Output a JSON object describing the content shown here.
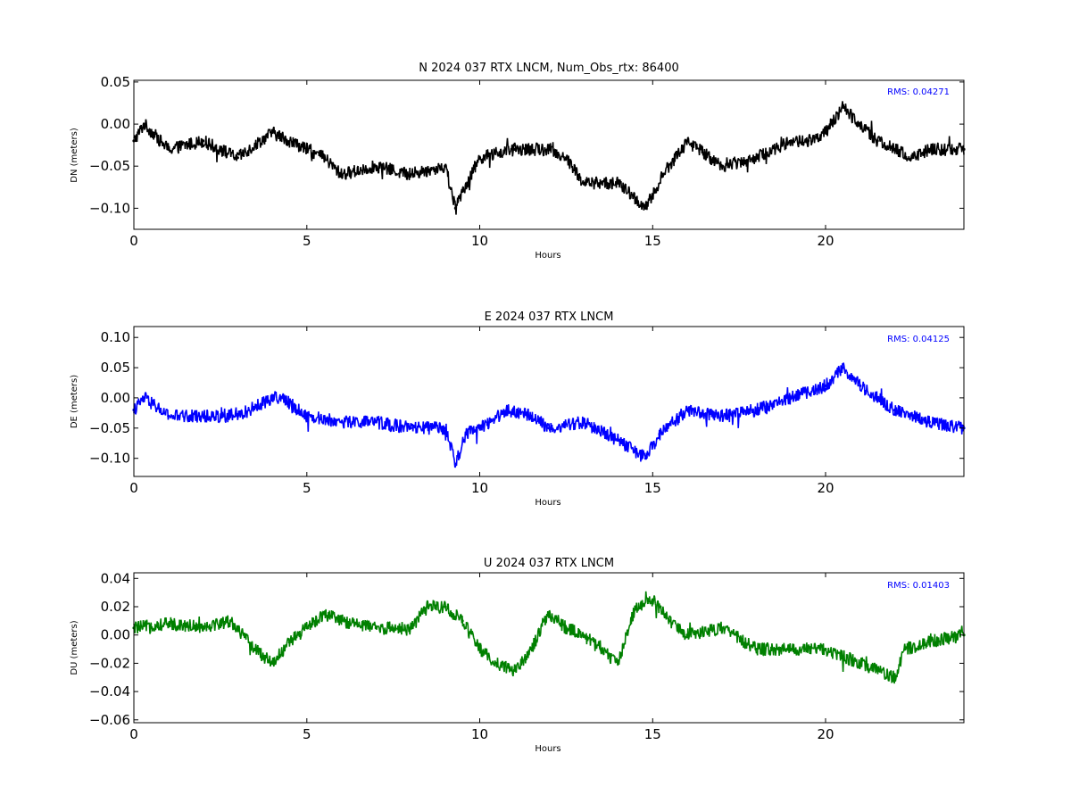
{
  "chart_data": [
    {
      "type": "scatter",
      "title": "N 2024 037 RTX  LNCM, Num_Obs_rtx: 86400",
      "xlabel": "Hours",
      "ylabel": "DN (meters)",
      "xlim": [
        0,
        24
      ],
      "ylim": [
        -0.125,
        0.052
      ],
      "xticks": [
        0,
        5,
        10,
        15,
        20
      ],
      "xtick_labels": [
        "0",
        "5",
        "10",
        "15",
        "20"
      ],
      "yticks": [
        -0.1,
        -0.05,
        0.0,
        0.05
      ],
      "ytick_labels": [
        "−0.10",
        "−0.05",
        "0.00",
        "0.05"
      ],
      "annotation": "RMS:  0.04271",
      "annotation_color": "#0000ff",
      "series": [
        {
          "color": "#000000",
          "x": [
            0,
            0.3,
            1,
            2,
            3,
            4,
            5,
            5.5,
            6,
            7,
            8,
            9,
            9.3,
            9.5,
            10,
            11,
            12,
            12.5,
            13,
            14,
            14.8,
            15.3,
            16,
            17,
            18,
            19,
            19.5,
            20,
            20.5,
            21,
            21.5,
            22,
            22.5,
            23,
            24
          ],
          "y": [
            -0.02,
            0.0,
            -0.03,
            -0.02,
            -0.04,
            -0.01,
            -0.03,
            -0.04,
            -0.06,
            -0.05,
            -0.06,
            -0.05,
            -0.1,
            -0.08,
            -0.04,
            -0.03,
            -0.03,
            -0.04,
            -0.07,
            -0.07,
            -0.1,
            -0.06,
            -0.02,
            -0.05,
            -0.04,
            -0.02,
            -0.02,
            -0.01,
            0.02,
            0.0,
            -0.02,
            -0.03,
            -0.04,
            -0.03,
            -0.03
          ]
        }
      ]
    },
    {
      "type": "scatter",
      "title": "E 2024 037 RTX  LNCM",
      "xlabel": "Hours",
      "ylabel": "DE (meters)",
      "xlim": [
        0,
        24
      ],
      "ylim": [
        -0.13,
        0.118
      ],
      "xticks": [
        0,
        5,
        10,
        15,
        20
      ],
      "xtick_labels": [
        "0",
        "5",
        "10",
        "15",
        "20"
      ],
      "yticks": [
        -0.1,
        -0.05,
        0.0,
        0.05,
        0.1
      ],
      "ytick_labels": [
        "−0.10",
        "−0.05",
        "0.00",
        "0.05",
        "0.10"
      ],
      "annotation": "RMS:  0.04125",
      "annotation_color": "#0000ff",
      "series": [
        {
          "color": "#0000ff",
          "x": [
            0,
            0.3,
            1,
            2,
            3,
            4,
            4.3,
            5,
            6,
            7,
            8,
            9,
            9.3,
            9.6,
            10,
            10.8,
            11.5,
            12,
            13,
            14,
            14.8,
            15.2,
            16,
            17,
            18,
            19,
            20,
            20.5,
            21,
            22,
            23,
            24
          ],
          "y": [
            -0.02,
            0.0,
            -0.03,
            -0.03,
            -0.03,
            0.0,
            0.0,
            -0.03,
            -0.04,
            -0.04,
            -0.05,
            -0.05,
            -0.11,
            -0.06,
            -0.05,
            -0.02,
            -0.03,
            -0.05,
            -0.04,
            -0.07,
            -0.1,
            -0.06,
            -0.02,
            -0.03,
            -0.02,
            0.0,
            0.02,
            0.05,
            0.02,
            -0.02,
            -0.04,
            -0.05
          ]
        }
      ]
    },
    {
      "type": "scatter",
      "title": "U 2024 037 RTX  LNCM",
      "xlabel": "Hours",
      "ylabel": "DU (meters)",
      "xlim": [
        0,
        24
      ],
      "ylim": [
        -0.062,
        0.044
      ],
      "xticks": [
        0,
        5,
        10,
        15,
        20
      ],
      "xtick_labels": [
        "0",
        "5",
        "10",
        "15",
        "20"
      ],
      "yticks": [
        -0.06,
        -0.04,
        -0.02,
        0.0,
        0.02,
        0.04
      ],
      "ytick_labels": [
        "−0.06",
        "−0.04",
        "−0.02",
        "0.00",
        "0.02",
        "0.04"
      ],
      "annotation": "RMS:  0.01403",
      "annotation_color": "#0000ff",
      "series": [
        {
          "color": "#008000",
          "x": [
            0,
            1,
            2,
            2.8,
            3.5,
            4,
            4.5,
            5,
            5.5,
            6,
            7,
            8,
            8.5,
            9,
            9.5,
            10,
            10.5,
            11,
            11.5,
            12,
            12.5,
            13,
            13.5,
            14,
            14.5,
            15,
            15.5,
            16,
            17,
            18,
            19,
            20,
            21,
            21.5,
            22,
            22.3,
            23,
            24
          ],
          "y": [
            0.005,
            0.008,
            0.006,
            0.01,
            -0.01,
            -0.02,
            -0.005,
            0.005,
            0.015,
            0.01,
            0.005,
            0.005,
            0.02,
            0.02,
            0.01,
            -0.01,
            -0.02,
            -0.025,
            -0.01,
            0.015,
            0.005,
            0.0,
            -0.01,
            -0.02,
            0.02,
            0.025,
            0.01,
            0.0,
            0.005,
            -0.01,
            -0.01,
            -0.01,
            -0.02,
            -0.025,
            -0.03,
            -0.01,
            -0.005,
            0.0
          ]
        }
      ]
    }
  ]
}
